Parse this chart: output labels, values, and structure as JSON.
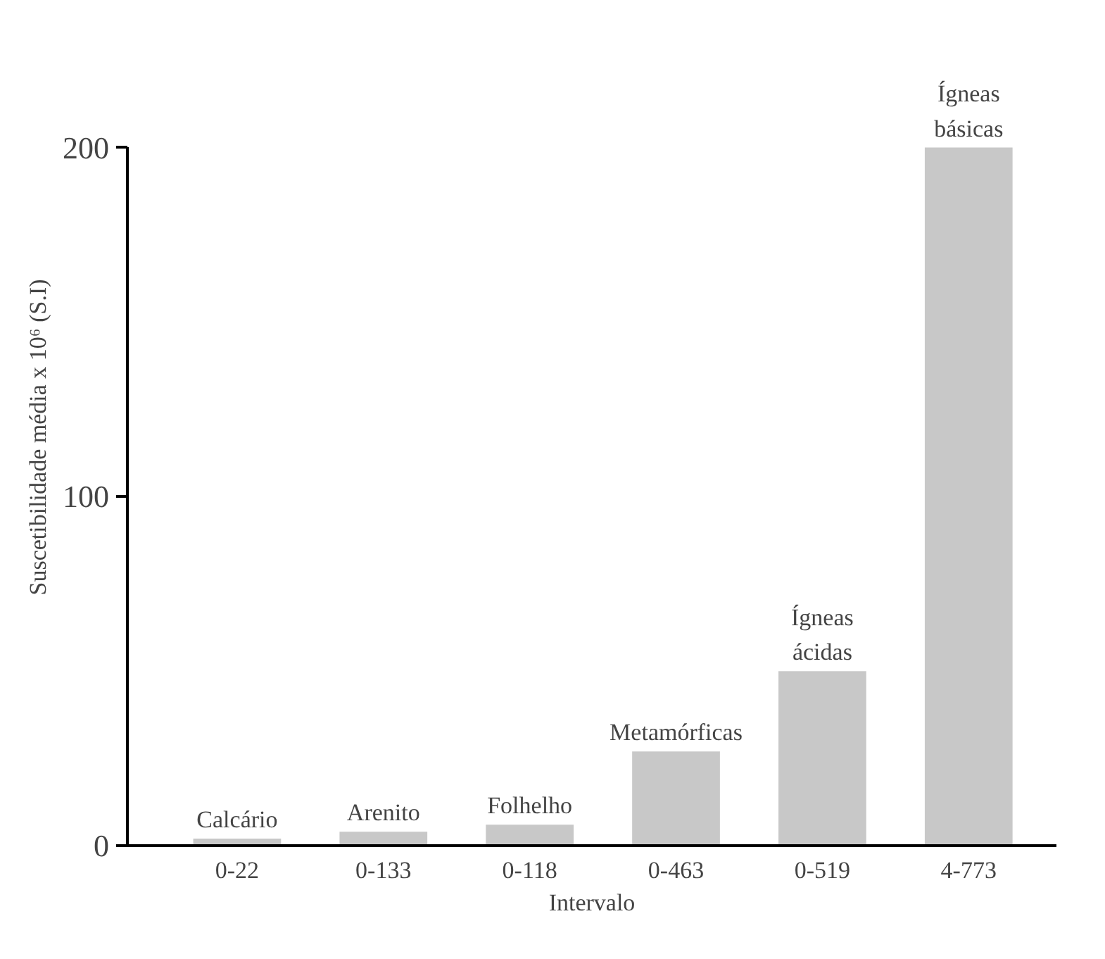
{
  "chart_data": {
    "type": "bar",
    "xlabel": "Intervalo",
    "ylabel": "Suscetibilidade média x 10⁶ (S.I)",
    "categories": [
      "0-22",
      "0-133",
      "0-118",
      "0-463",
      "0-519",
      "4-773"
    ],
    "values": [
      2,
      4,
      6,
      27,
      50,
      200
    ],
    "color": "#c8c8c8",
    "ylim": [
      0,
      200
    ],
    "yticks": [
      0,
      100,
      200
    ],
    "grid": false,
    "annotations": [
      {
        "text": "Calcário",
        "x": "0-22",
        "y": 2
      },
      {
        "text": "Arenito",
        "x": "0-133",
        "y": 4
      },
      {
        "text": "Folhelho",
        "x": "0-118",
        "y": 6
      },
      {
        "text": "Metamórficas",
        "x": "0-463",
        "y": 27
      },
      {
        "text": "Ígneas\nácidas",
        "x": "0-519",
        "y": 50
      },
      {
        "text": "Ígneas\nbásicas",
        "x": "4-773",
        "y": 200
      }
    ]
  }
}
